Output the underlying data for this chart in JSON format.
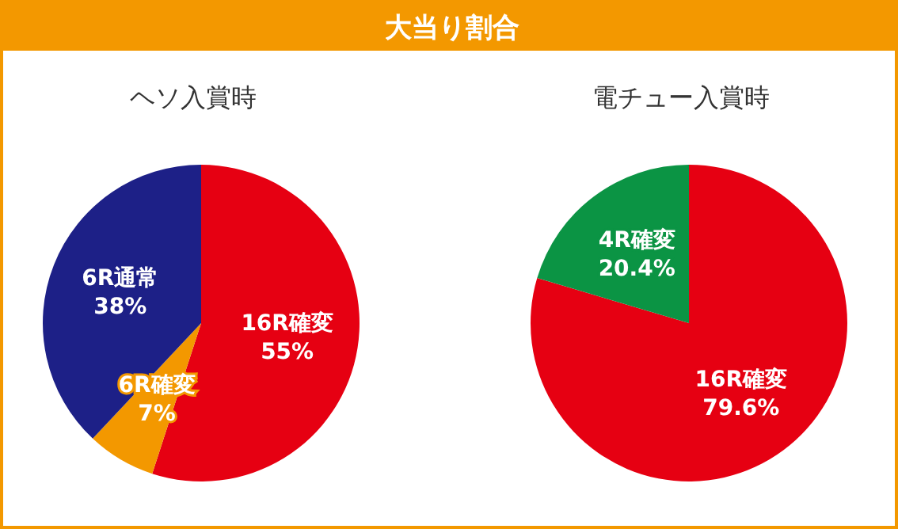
{
  "chart_data": [
    {
      "type": "other",
      "title": "大当り割合"
    },
    {
      "type": "pie",
      "title": "ヘソ入賞時",
      "categories": [
        "16R確変",
        "6R確変",
        "6R通常"
      ],
      "values": [
        55,
        7,
        38
      ],
      "colors": [
        "#e60012",
        "#f39800",
        "#1d2087"
      ],
      "value_labels": [
        "55%",
        "7%",
        "38%"
      ]
    },
    {
      "type": "pie",
      "title": "電チュー入賞時",
      "categories": [
        "16R確変",
        "4R確変"
      ],
      "values": [
        79.6,
        20.4
      ],
      "colors": [
        "#e60012",
        "#0b9444"
      ],
      "value_labels": [
        "79.6%",
        "20.4%"
      ]
    }
  ]
}
